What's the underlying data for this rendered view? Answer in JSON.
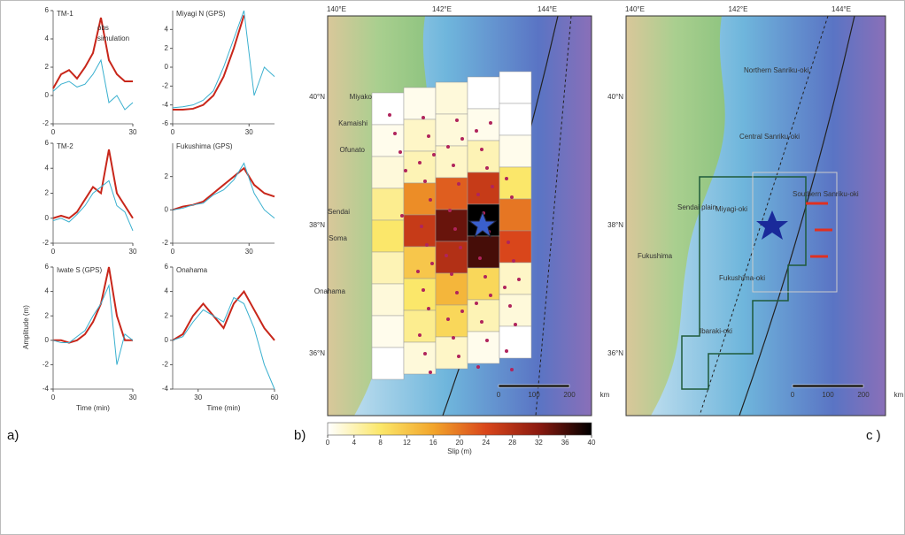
{
  "panels": {
    "a": "a)",
    "b": "b)",
    "c": "c )"
  },
  "waveforms": {
    "y_label": "Amplitude (m)",
    "x_label": "Time (min)",
    "legend": [
      {
        "name": "obs",
        "color": "#c8261a"
      },
      {
        "name": "simulation",
        "color": "#3ab0cf"
      }
    ],
    "plots": [
      {
        "title": "TM-1",
        "xlim": [
          0,
          30
        ],
        "xticks": [
          0,
          30
        ],
        "ylim": [
          -2,
          6
        ],
        "yticks": [
          -2,
          0,
          2,
          4,
          6
        ],
        "x": [
          0,
          3,
          6,
          9,
          12,
          15,
          18,
          21,
          24,
          27,
          30
        ],
        "series": [
          [
            0.5,
            1.5,
            1.8,
            1.2,
            2,
            3,
            5.5,
            2.5,
            1.5,
            1,
            1
          ],
          [
            0.3,
            0.8,
            1,
            0.6,
            0.8,
            1.5,
            2.5,
            -0.5,
            0,
            -1,
            -0.5
          ]
        ]
      },
      {
        "title": "TM-2",
        "xlim": [
          0,
          30
        ],
        "xticks": [
          0,
          30
        ],
        "ylim": [
          -2,
          6
        ],
        "yticks": [
          -2,
          0,
          2,
          4,
          6
        ],
        "x": [
          0,
          3,
          6,
          9,
          12,
          15,
          18,
          21,
          24,
          27,
          30
        ],
        "series": [
          [
            0,
            0.2,
            0,
            0.5,
            1.5,
            2.5,
            2,
            5.5,
            2,
            1,
            0
          ],
          [
            -0.2,
            0,
            -0.3,
            0.3,
            1,
            2,
            2.5,
            3,
            1,
            0.5,
            -1
          ]
        ]
      },
      {
        "title": "Iwate S (GPS)",
        "xlim": [
          0,
          30
        ],
        "xticks": [
          0,
          30
        ],
        "ylim": [
          -4,
          6
        ],
        "yticks": [
          -4,
          -2,
          0,
          2,
          4,
          6
        ],
        "x": [
          0,
          3,
          6,
          9,
          12,
          15,
          18,
          21,
          24,
          27,
          30
        ],
        "series": [
          [
            0,
            0,
            -0.2,
            0,
            0.5,
            1.5,
            3,
            6,
            2,
            0,
            0
          ],
          [
            0,
            -0.2,
            -0.2,
            0.3,
            0.8,
            2,
            3,
            4.5,
            -2,
            0.5,
            0
          ]
        ]
      },
      {
        "title": "Miyagi N (GPS)",
        "xlim": [
          0,
          40
        ],
        "xticks": [
          0,
          30
        ],
        "ylim": [
          -6,
          6
        ],
        "yticks": [
          -6,
          -4,
          -2,
          0,
          2,
          4
        ],
        "x": [
          0,
          4,
          8,
          12,
          16,
          20,
          24,
          28,
          32,
          36,
          40
        ],
        "series": [
          [
            -4.5,
            -4.5,
            -4.4,
            -4,
            -3,
            -1,
            2,
            5.5,
            null,
            null,
            null
          ],
          [
            -4.3,
            -4.2,
            -4,
            -3.5,
            -2.5,
            0,
            3,
            6,
            -3,
            0,
            -1
          ]
        ]
      },
      {
        "title": "Fukushima (GPS)",
        "xlim": [
          0,
          40
        ],
        "xticks": [
          0,
          30
        ],
        "ylim": [
          -2,
          4
        ],
        "yticks": [
          -2,
          0,
          2
        ],
        "x": [
          0,
          4,
          8,
          12,
          16,
          20,
          24,
          28,
          32,
          36,
          40
        ],
        "series": [
          [
            0,
            0.2,
            0.3,
            0.5,
            1,
            1.5,
            2,
            2.5,
            1.5,
            1,
            0.8
          ],
          [
            0,
            0.1,
            0.3,
            0.4,
            0.9,
            1.2,
            1.8,
            2.8,
            1,
            0,
            -0.5
          ]
        ]
      },
      {
        "title": "Onahama",
        "xlim": [
          20,
          60
        ],
        "xticks": [
          30,
          60
        ],
        "ylim": [
          -4,
          6
        ],
        "yticks": [
          -4,
          -2,
          0,
          2,
          4,
          6
        ],
        "x": [
          20,
          24,
          28,
          32,
          36,
          40,
          44,
          48,
          52,
          56,
          60
        ],
        "series": [
          [
            0,
            0.5,
            2,
            3,
            2,
            1,
            3,
            4,
            2.5,
            1,
            0
          ],
          [
            0,
            0.3,
            1.5,
            2.5,
            2,
            1.5,
            3.5,
            3,
            1,
            -2,
            -4
          ]
        ]
      }
    ]
  },
  "map_axes": {
    "lon_labels": [
      "140°E",
      "142°E",
      "144°E"
    ],
    "lat_labels": [
      "40°N",
      "38°N",
      "36°N"
    ],
    "scale": [
      "0",
      "100",
      "200",
      "km"
    ]
  },
  "map_b": {
    "labels": [
      "Miyako",
      "Kamaishi",
      "Ofunato",
      "Sendai",
      "Soma",
      "Onahama"
    ],
    "slip": [
      [
        0,
        1,
        2,
        0,
        0
      ],
      [
        1,
        3,
        2,
        1,
        0
      ],
      [
        2,
        4,
        3,
        4,
        1
      ],
      [
        6,
        18,
        22,
        26,
        8
      ],
      [
        8,
        26,
        34,
        40,
        20
      ],
      [
        4,
        12,
        28,
        36,
        24
      ],
      [
        2,
        8,
        14,
        10,
        3
      ],
      [
        1,
        6,
        10,
        4,
        2
      ],
      [
        0,
        2,
        3,
        1,
        0
      ]
    ]
  },
  "colorbar": {
    "label": "Slip (m)",
    "lim": [
      0,
      40
    ],
    "ticks": [
      0,
      4,
      8,
      12,
      16,
      20,
      24,
      28,
      32,
      36,
      40
    ],
    "colormap": [
      "#ffffff",
      "#fbe76a",
      "#f2a52b",
      "#d9461b",
      "#8b1a10",
      "#000000"
    ]
  },
  "map_c": {
    "labels": [
      "Northern Sanriku-oki",
      "Central Sanriku-oki",
      "Southern Sanriku-oki",
      "Miyagi-oki",
      "Fukushima-oki",
      "Ibaraki-oki",
      "Sendai plain",
      "Fukushima"
    ]
  }
}
